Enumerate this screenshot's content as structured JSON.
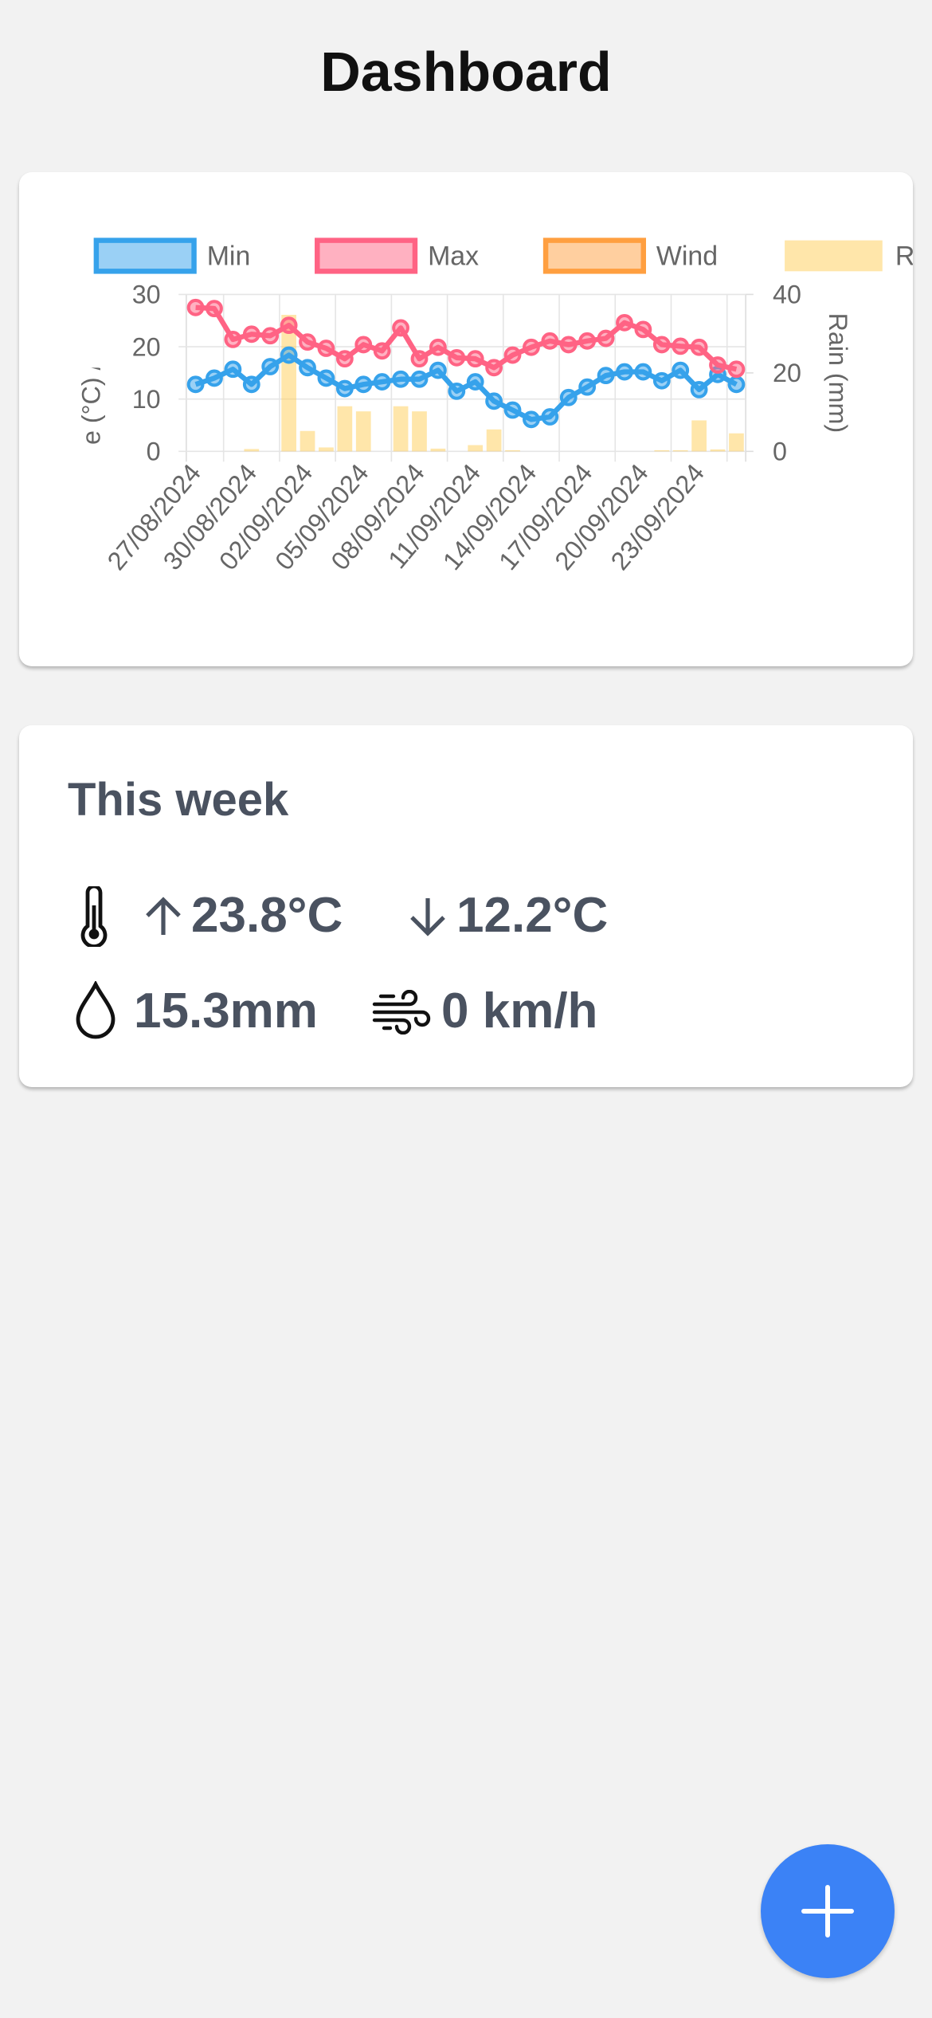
{
  "header": {
    "title": "Dashboard"
  },
  "chart_data": {
    "type": "line",
    "categories": [
      "27/08/2024",
      null,
      null,
      "30/08/2024",
      null,
      null,
      "02/09/2024",
      null,
      null,
      "05/09/2024",
      null,
      null,
      "08/09/2024",
      null,
      null,
      "11/09/2024",
      null,
      null,
      "14/09/2024",
      null,
      null,
      "17/09/2024",
      null,
      null,
      "20/09/2024",
      null,
      null,
      "23/09/2024",
      null,
      null
    ],
    "series": [
      {
        "name": "Min",
        "type": "line",
        "color": "#36a2eb",
        "values": [
          12.8,
          14.0,
          15.7,
          12.8,
          16.2,
          18.4,
          16.0,
          14.0,
          12.0,
          12.8,
          13.3,
          13.8,
          13.8,
          15.5,
          11.5,
          13.3,
          9.6,
          7.9,
          6.1,
          6.6,
          10.3,
          12.3,
          14.5,
          15.2,
          15.2,
          13.5,
          15.5,
          11.8,
          14.7,
          12.8
        ]
      },
      {
        "name": "Max",
        "type": "line",
        "color": "#ff6384",
        "values": [
          27.5,
          27.3,
          21.4,
          22.4,
          22.1,
          24.1,
          20.9,
          19.7,
          17.7,
          20.4,
          19.2,
          23.6,
          17.7,
          19.9,
          17.9,
          17.7,
          16.0,
          18.4,
          19.9,
          21.1,
          20.4,
          21.1,
          21.6,
          24.6,
          23.3,
          20.4,
          20.1,
          19.9,
          16.5,
          15.7
        ]
      },
      {
        "name": "Wind",
        "type": "line",
        "color": "#ff9f40",
        "values": [
          null,
          null,
          null,
          null,
          null,
          null,
          null,
          null,
          null,
          null,
          null,
          null,
          null,
          null,
          null,
          null,
          null,
          null,
          null,
          null,
          null,
          null,
          null,
          null,
          null,
          null,
          null,
          null,
          null,
          null
        ]
      },
      {
        "name": "Rain",
        "type": "bar",
        "axis": "y2",
        "color": "#ffcd56",
        "values": [
          0,
          0,
          0,
          0.6,
          0,
          34.8,
          5.2,
          1.0,
          11.5,
          10.2,
          0,
          11.5,
          10.2,
          0.7,
          0,
          1.6,
          5.6,
          0.3,
          0,
          0,
          0,
          0,
          0,
          0,
          0,
          0.3,
          0.3,
          7.9,
          0.5,
          4.6
        ]
      }
    ],
    "ylabel": "Temperature (°C) / Wind (km/h)",
    "y2label": "Rain (mm)",
    "ylim": [
      0,
      30
    ],
    "yticks": [
      0,
      10,
      20,
      30
    ],
    "y2lim": [
      0,
      40
    ],
    "y2ticks": [
      0,
      20,
      40
    ],
    "grid": true,
    "legend": "top"
  },
  "summary": {
    "title": "This week",
    "max_temp": "23.8°C",
    "min_temp": "12.2°C",
    "rain": "15.3mm",
    "wind": "0 km/h"
  }
}
